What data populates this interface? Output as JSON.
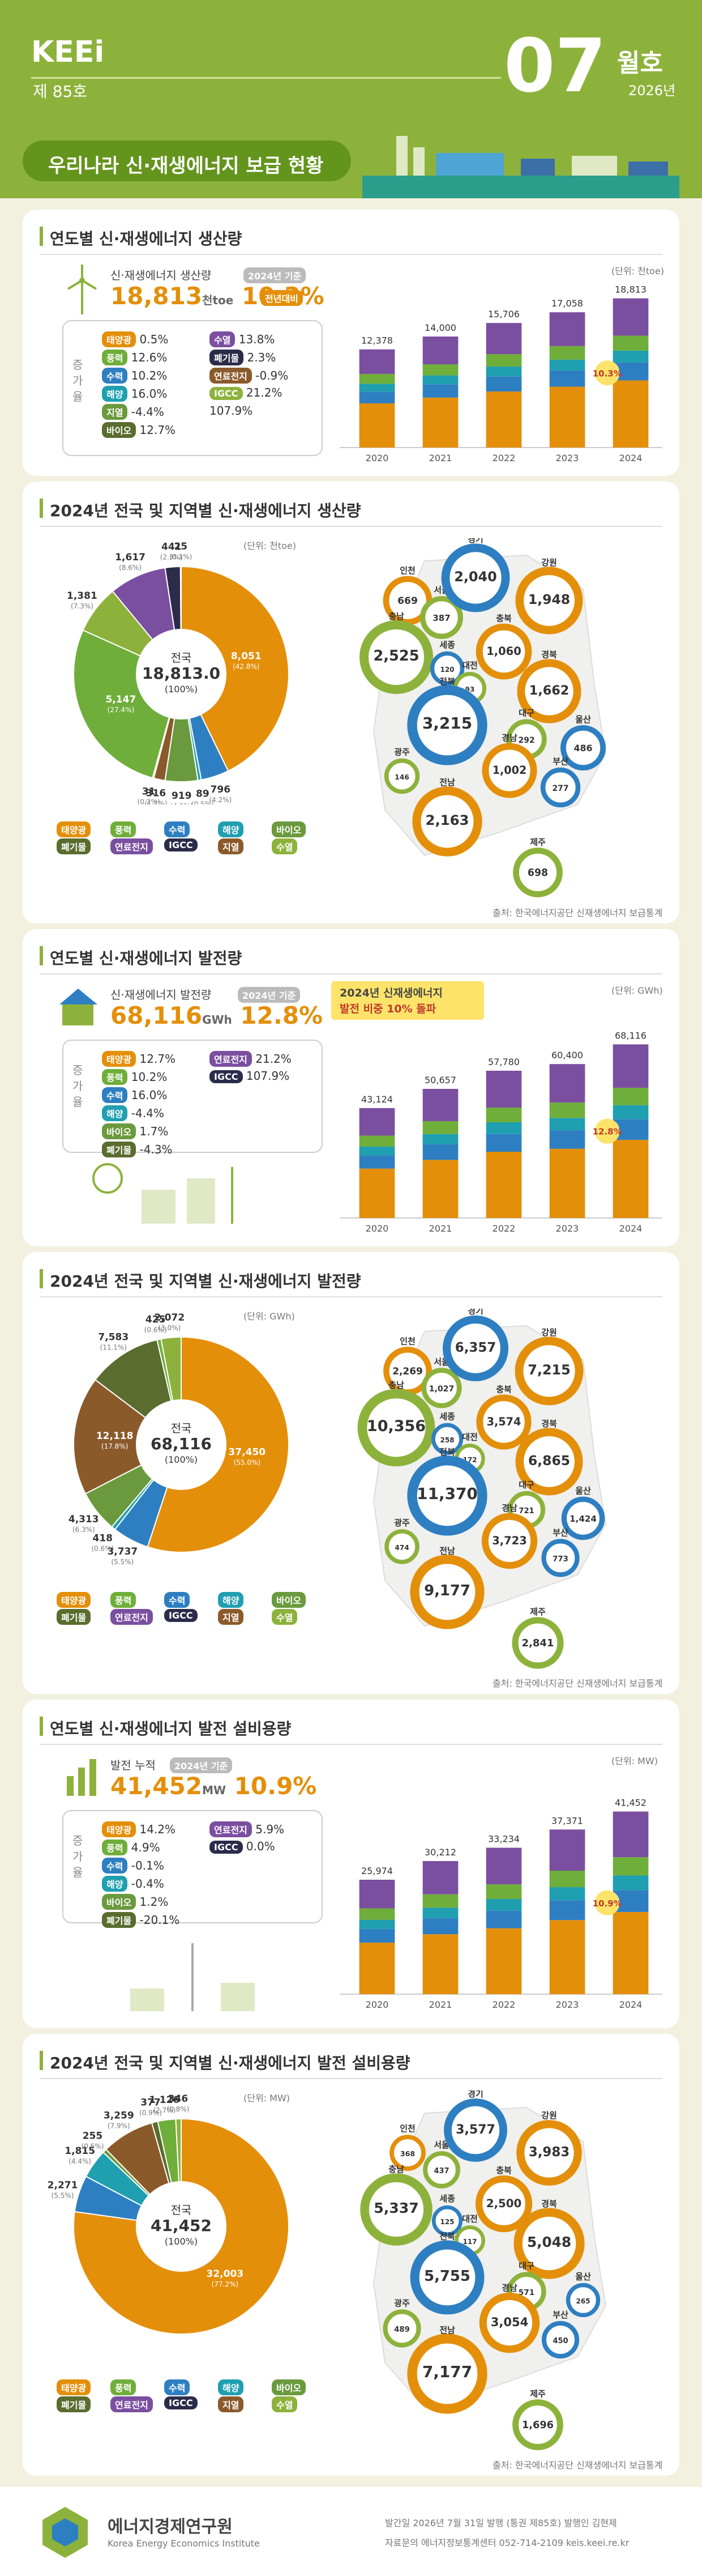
{
  "header": {
    "logo": "KEEi",
    "issue": "제 85호",
    "number": "07",
    "month": "월호",
    "year": "2026년",
    "title": "우리나라 신·재생에너지 보급 현황"
  },
  "colors": {
    "solar": "#e48f0a",
    "wind": "#6fae3a",
    "hydro": "#2e7fc1",
    "ocean": "#1f9fb0",
    "bio": "#6a9a3d",
    "waste": "#5a6c2e",
    "geo": "#8b5a2b",
    "fuelcell": "#7b4fa0",
    "igcc": "#2b2b4a",
    "green": "#8db23b"
  },
  "panel1": {
    "title": "연도별 신·재생에너지 생산량",
    "subtitle": "신·재생에너지 생산량",
    "badge": "2024년 기준",
    "value": "18,813",
    "unit": "천toe",
    "growth": "10.3%",
    "up": "전년대비",
    "increase_label": "증가율",
    "rates": [
      [
        "태양광",
        "0.5%"
      ],
      [
        "풍력",
        "12.6%"
      ],
      [
        "수력",
        "10.2%"
      ],
      [
        "해양",
        "16.0%"
      ],
      [
        "지열",
        "-4.4%"
      ],
      [
        "바이오",
        "12.7%"
      ],
      [
        "수열",
        "13.8%"
      ],
      [
        "폐기물",
        "2.3%"
      ],
      [
        "연료전지",
        "-0.9%"
      ],
      [
        "IGCC",
        "21.2%"
      ],
      [
        "",
        "107.9%"
      ]
    ],
    "unit_note": "(단위: 천toe)",
    "chart_data": {
      "type": "bar",
      "categories": [
        "2020",
        "2021",
        "2022",
        "2023",
        "2024"
      ],
      "values": [
        12378,
        14000,
        15706,
        17058,
        18813
      ],
      "ylim": [
        0,
        20000
      ],
      "annotation": "10.3%"
    }
  },
  "panel2": {
    "title": "2024년 전국 및 지역별 신·재생에너지 생산량",
    "unit_note": "(단위: 천toe)",
    "center": "전국",
    "center_value": "18,813.0",
    "center_pct": "(100%)",
    "chart_data": {
      "type": "pie",
      "labels": [
        "8,051",
        "796",
        "89",
        "919",
        "316",
        "31",
        "5,147",
        "1,381",
        "1,617",
        "441",
        "25"
      ],
      "pcts": [
        "(42.8%)",
        "(4.2%)",
        "(0.5%)",
        "(4.9%)",
        "(1.7%)",
        "(0.2%)",
        "(27.4%)",
        "(7.3%)",
        "(8.6%)",
        "(2.3%)",
        "(0.1%)"
      ],
      "values": [
        42.8,
        4.2,
        0.5,
        4.9,
        1.7,
        0.2,
        27.4,
        7.3,
        8.6,
        2.3,
        0.1
      ]
    },
    "regions": [
      [
        "인천",
        "669"
      ],
      [
        "서울",
        "387"
      ],
      [
        "경기",
        "2,040"
      ],
      [
        "강원",
        "1,948"
      ],
      [
        "충남",
        "2,525"
      ],
      [
        "세종",
        "120"
      ],
      [
        "충북",
        "1,060"
      ],
      [
        "대전",
        "93"
      ],
      [
        "전북",
        "3,215"
      ],
      [
        "경북",
        "1,662"
      ],
      [
        "대구",
        "292"
      ],
      [
        "울산",
        "486"
      ],
      [
        "경남",
        "1,002"
      ],
      [
        "광주",
        "146"
      ],
      [
        "부산",
        "277"
      ],
      [
        "전남",
        "2,163"
      ],
      [
        "제주",
        "698"
      ]
    ],
    "source": "출처: 한국에너지공단 신재생에너지 보급통계"
  },
  "panel3": {
    "title": "연도별 신·재생에너지 발전량",
    "subtitle": "신·재생에너지 발전량",
    "badge": "2024년 기준",
    "value": "68,116",
    "unit": "GWh",
    "growth": "12.8%",
    "callout1": "2024년 신재생에너지",
    "callout2": "발전 비중 10% 돌파",
    "rates": [
      [
        "태양광",
        "12.7%"
      ],
      [
        "풍력",
        "10.2%"
      ],
      [
        "수력",
        "16.0%"
      ],
      [
        "해양",
        "-4.4%"
      ],
      [
        "바이오",
        "1.7%"
      ],
      [
        "폐기물",
        "-4.3%"
      ],
      [
        "연료전지",
        "21.2%"
      ],
      [
        "IGCC",
        "107.9%"
      ]
    ],
    "unit_note": "(단위: GWh)",
    "chart_data": {
      "type": "bar",
      "categories": [
        "2020",
        "2021",
        "2022",
        "2023",
        "2024"
      ],
      "values": [
        43124,
        50657,
        57780,
        60400,
        68116
      ],
      "ylim": [
        0,
        70000
      ],
      "annotation": "12.8%"
    }
  },
  "panel4": {
    "title": "2024년 전국 및 지역별 신·재생에너지 발전량",
    "unit_note": "(단위: GWh)",
    "center": "전국",
    "center_value": "68,116",
    "center_pct": "(100%)",
    "chart_data": {
      "type": "pie",
      "labels": [
        "37,450",
        "3,737",
        "418",
        "4,313",
        "12,118",
        "7,583",
        "425",
        "2,072"
      ],
      "pcts": [
        "(55.0%)",
        "(5.5%)",
        "(0.6%)",
        "(6.3%)",
        "(17.8%)",
        "(11.1%)",
        "(0.6%)",
        "(3.0%)"
      ],
      "values": [
        55.0,
        5.5,
        0.6,
        6.3,
        17.8,
        11.1,
        0.6,
        3.0
      ]
    },
    "regions": [
      [
        "인천",
        "2,269"
      ],
      [
        "서울",
        "1,027"
      ],
      [
        "경기",
        "6,357"
      ],
      [
        "강원",
        "7,215"
      ],
      [
        "충남",
        "10,356"
      ],
      [
        "세종",
        "258"
      ],
      [
        "충북",
        "3,574"
      ],
      [
        "대전",
        "172"
      ],
      [
        "전북",
        "11,370"
      ],
      [
        "경북",
        "6,865"
      ],
      [
        "대구",
        "721"
      ],
      [
        "울산",
        "1,424"
      ],
      [
        "경남",
        "3,723"
      ],
      [
        "광주",
        "474"
      ],
      [
        "부산",
        "773"
      ],
      [
        "전남",
        "9,177"
      ],
      [
        "제주",
        "2,841"
      ]
    ],
    "source": "출처: 한국에너지공단 신재생에너지 보급통계"
  },
  "panel5": {
    "title": "연도별 신·재생에너지 발전 설비용량",
    "subtitle": "발전 누적",
    "badge": "2024년 기준",
    "value": "41,452",
    "unit": "MW",
    "growth": "10.9%",
    "rates": [
      [
        "태양광",
        "14.2%"
      ],
      [
        "풍력",
        "4.9%"
      ],
      [
        "수력",
        "-0.1%"
      ],
      [
        "해양",
        "-0.4%"
      ],
      [
        "바이오",
        "1.2%"
      ],
      [
        "폐기물",
        "-20.1%"
      ],
      [
        "연료전지",
        "5.9%"
      ],
      [
        "IGCC",
        "0.0%"
      ]
    ],
    "unit_note": "(단위: MW)",
    "chart_data": {
      "type": "bar",
      "categories": [
        "2020",
        "2021",
        "2022",
        "2023",
        "2024"
      ],
      "values": [
        25974,
        30212,
        33234,
        37371,
        41452
      ],
      "ylim": [
        0,
        45000
      ],
      "annotation": "10.9%"
    }
  },
  "panel6": {
    "title": "2024년 전국 및 지역별 신·재생에너지 발전 설비용량",
    "unit_note": "(단위: MW)",
    "center": "전국",
    "center_value": "41,452",
    "center_pct": "(100%)",
    "chart_data": {
      "type": "pie",
      "labels": [
        "32,003",
        "2,271",
        "1,815",
        "255",
        "3,259",
        "377",
        "1,126",
        "346"
      ],
      "pcts": [
        "(77.2%)",
        "(5.5%)",
        "(4.4%)",
        "(0.6%)",
        "(7.9%)",
        "(0.9%)",
        "(2.7%)",
        "(0.8%)"
      ],
      "values": [
        77.2,
        5.5,
        4.4,
        0.6,
        7.9,
        0.9,
        2.7,
        0.8
      ]
    },
    "regions": [
      [
        "인천",
        "368"
      ],
      [
        "서울",
        "437"
      ],
      [
        "경기",
        "3,577"
      ],
      [
        "강원",
        "3,983"
      ],
      [
        "충남",
        "5,337"
      ],
      [
        "세종",
        "125"
      ],
      [
        "충북",
        "2,500"
      ],
      [
        "대전",
        "117"
      ],
      [
        "전북",
        "5,755"
      ],
      [
        "경북",
        "5,048"
      ],
      [
        "대구",
        "571"
      ],
      [
        "울산",
        "265"
      ],
      [
        "경남",
        "3,054"
      ],
      [
        "광주",
        "489"
      ],
      [
        "부산",
        "450"
      ],
      [
        "전남",
        "7,177"
      ],
      [
        "제주",
        "1,696"
      ]
    ],
    "source": "출처: 한국에너지공단 신재생에너지 보급통계"
  },
  "legend": [
    "태양광",
    "풍력",
    "수력",
    "해양",
    "바이오",
    "폐기물",
    "연료전지",
    "IGCC",
    "지열",
    "수열"
  ],
  "footer": {
    "org": "에너지경제연구원",
    "org_en": "Korea Energy Economics Institute",
    "info": "발간일 2026년 7월 31일 발행 (통권 제85호)  발행인 김현제",
    "contact": "자료문의 에너지정보통계센터  052-714-2109  keis.keei.re.kr"
  }
}
